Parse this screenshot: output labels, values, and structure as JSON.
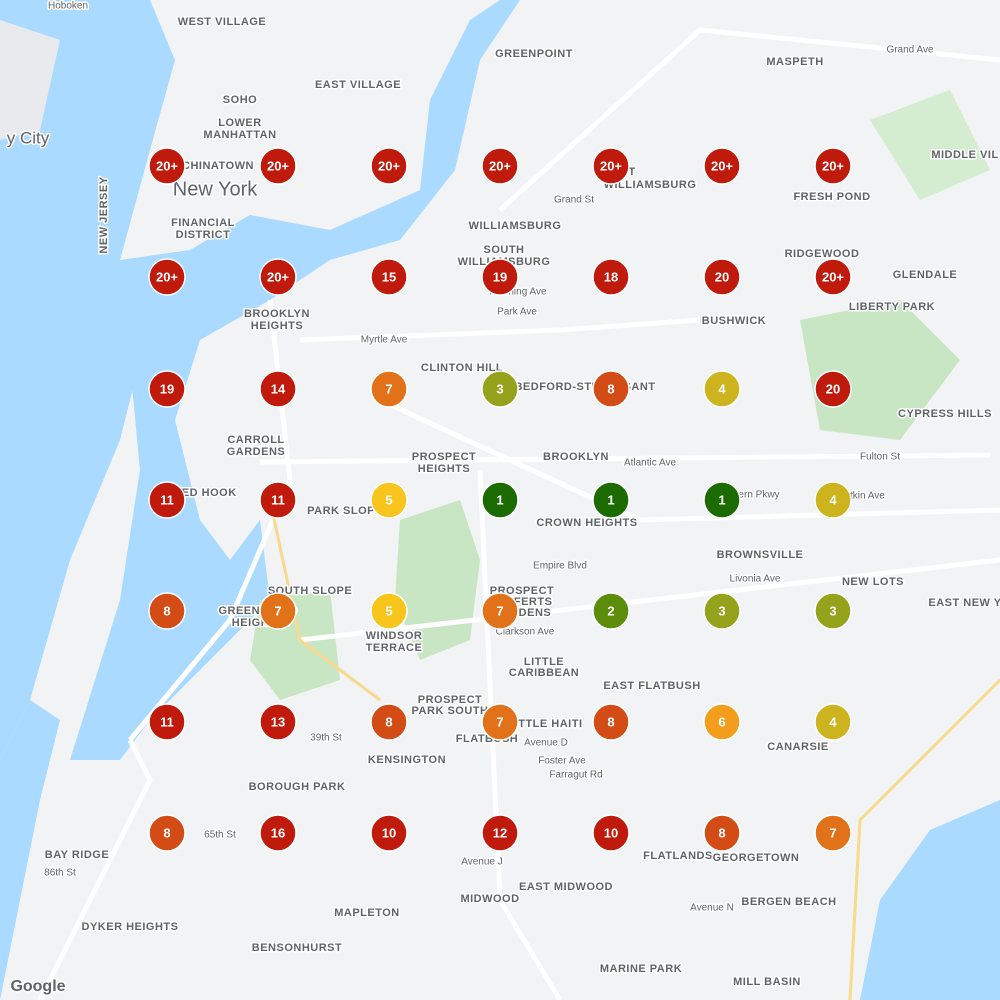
{
  "markers": [
    [
      "20+",
      "20+",
      "20+",
      "20+",
      "20+",
      "20+",
      "20+"
    ],
    [
      "20+",
      "20+",
      "15",
      "19",
      "18",
      "20",
      "20+"
    ],
    [
      "19",
      "14",
      "7",
      "3",
      "8",
      "4",
      "20"
    ],
    [
      "11",
      "11",
      "5",
      "1",
      "1",
      "1",
      "4"
    ],
    [
      "8",
      "7",
      "5",
      "7",
      "2",
      "3",
      "3"
    ],
    [
      "11",
      "13",
      "8",
      "7",
      "8",
      "6",
      "4"
    ],
    [
      "8",
      "16",
      "10",
      "12",
      "10",
      "8",
      "7"
    ]
  ],
  "labels": [
    "Hoboken",
    "WEST VILLAGE",
    "GREENPOINT",
    "MASPETH",
    "SOHO",
    "EAST VILLAGE",
    "LOWER",
    "MANHATTAN",
    "y City",
    "New York",
    "CHINATOWN",
    "FINANCIAL",
    "DISTRICT",
    "EAST",
    "WILLIAMSBURG",
    "FRESH POND",
    "MIDDLE VIL",
    "WILLIAMSBURG",
    "SOUTH",
    "WILLIAMSBURG",
    "RIDGEWOOD",
    "GLENDALE",
    "LIBERTY PARK",
    "BUSHWICK",
    "BROOKLYN",
    "HEIGHTS",
    "CLINTON HILL",
    "BEDFORD-STUYVESANT",
    "CYPRESS HILLS",
    "CARROLL",
    "GARDENS",
    "PROSPECT",
    "HEIGHTS",
    "BROOKLYN",
    "RED HOOK",
    "PARK SLOPE",
    "CROWN HEIGHTS",
    "BROWNSVILLE",
    "NEW LOTS",
    "EAST NEW Y",
    "SOUTH SLOPE",
    "GREENWOOD",
    "HEIGHTS",
    "PROSPECT",
    "LEFFERTS",
    "GARDENS",
    "WINDSOR",
    "TERRACE",
    "LITTLE",
    "CARIBBEAN",
    "EAST FLATBUSH",
    "PROSPECT",
    "PARK SOUTH",
    "LITTLE HAITI",
    "FLATBUSH",
    "CANARSIE",
    "KENSINGTON",
    "BOROUGH PARK",
    "BAY RIDGE",
    "FLATLANDS",
    "GEORGETOWN",
    "EAST MIDWOOD",
    "MIDWOOD",
    "BERGEN BEACH",
    "MAPLETON",
    "DYKER HEIGHTS",
    "BENSONHURST",
    "MARINE PARK",
    "MILL BASIN",
    "NEW JERSEY",
    "Atlantic Ave",
    "Fulton St",
    "Myrtle Ave",
    "Grand St",
    "Flushing Ave",
    "Park Ave",
    "Eastern Pkwy",
    "Pitkin Ave",
    "Empire Blvd",
    "Livonia Ave",
    "Clarkson Ave",
    "Avenue D",
    "Foster Ave",
    "Farragut Rd",
    "Avenue J",
    "Avenue N",
    "86th St",
    "65th St",
    "39th St",
    "Grand Ave",
    "Google"
  ]
}
